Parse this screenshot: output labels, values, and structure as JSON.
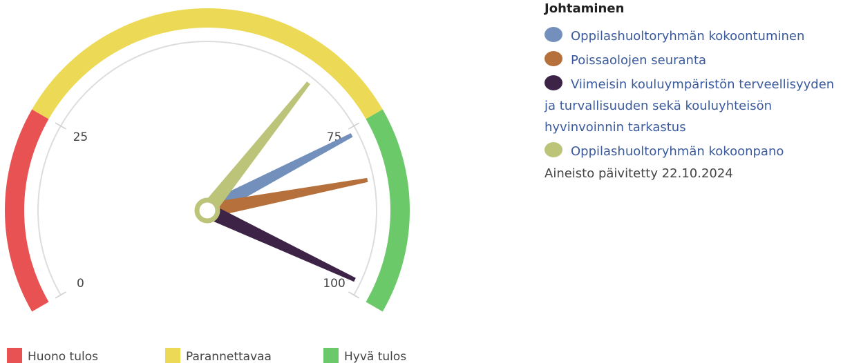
{
  "chart_data": {
    "type": "gauge",
    "title": "Johtaminen",
    "ylim": [
      0,
      100
    ],
    "yticks": [
      0,
      25,
      75,
      100
    ],
    "bands": [
      {
        "name": "Huono tulos",
        "color": "#e85252",
        "from": 0,
        "to": 25
      },
      {
        "name": "Parannettavaa",
        "color": "#ecd955",
        "from": 25,
        "to": 75
      },
      {
        "name": "Hyvä tulos",
        "color": "#6cc96a",
        "from": 75,
        "to": 100
      }
    ],
    "series": [
      {
        "name": "Oppilashuoltoryhmän kokoontuminen",
        "color": "#7390bd",
        "values": [
          76
        ]
      },
      {
        "name": "Poissaolojen seuranta",
        "color": "#b5703c",
        "values": [
          83
        ]
      },
      {
        "name": "Viimeisin kouluympäristön terveellisyyden ja turvallisuuden sekä kouluyhteisön hyvinvoinnin tarkastus",
        "color": "#3d2447",
        "values": [
          98
        ]
      },
      {
        "name": "Oppilashuoltoryhmän kokoonpano",
        "color": "#bcc47a",
        "values": [
          66
        ]
      }
    ],
    "note": "Aineisto päivitetty 22.10.2024"
  }
}
